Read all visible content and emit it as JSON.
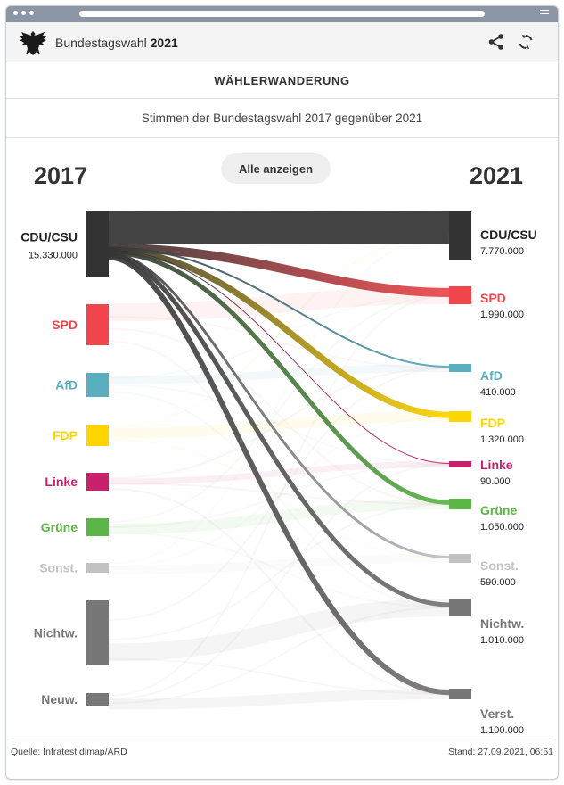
{
  "app": {
    "title_prefix": "Bundestagswahl",
    "title_year": "2021"
  },
  "section_title": "WÄHLERWANDERUNG",
  "subtitle": "Stimmen der Bundestagswahl 2017 gegenüber 2021",
  "button_label": "Alle anzeigen",
  "icons": [
    "eagle-logo-icon",
    "share-icon",
    "refresh-icon"
  ],
  "footer": {
    "source": "Quelle: Infratest dimap/ARD",
    "stand": "Stand: 27.09.2021, 06:51"
  },
  "chart_data": {
    "type": "sankey",
    "left_year": "2017",
    "right_year": "2021",
    "left_nodes": [
      {
        "id": "cdu",
        "label": "CDU/CSU",
        "value_label": "15.330.000",
        "color": "#333333"
      },
      {
        "id": "spd",
        "label": "SPD",
        "value_label": "",
        "color": "#f0454a"
      },
      {
        "id": "afd",
        "label": "AfD",
        "value_label": "",
        "color": "#59afc0"
      },
      {
        "id": "fdp",
        "label": "FDP",
        "value_label": "",
        "color": "#ffd500"
      },
      {
        "id": "linke",
        "label": "Linke",
        "value_label": "",
        "color": "#c8216b"
      },
      {
        "id": "gruene",
        "label": "Grüne",
        "value_label": "",
        "color": "#5bb647"
      },
      {
        "id": "sonst",
        "label": "Sonst.",
        "value_label": "",
        "color": "#c2c2c2"
      },
      {
        "id": "nichtw",
        "label": "Nichtw.",
        "value_label": "",
        "color": "#777777"
      },
      {
        "id": "neuw",
        "label": "Neuw.",
        "value_label": "",
        "color": "#777777"
      }
    ],
    "right_nodes": [
      {
        "id": "cdu",
        "label": "CDU/CSU",
        "value_label": "7.770.000",
        "color": "#333333"
      },
      {
        "id": "spd",
        "label": "SPD",
        "value_label": "1.990.000",
        "color": "#f0454a"
      },
      {
        "id": "afd",
        "label": "AfD",
        "value_label": "410.000",
        "color": "#59afc0"
      },
      {
        "id": "fdp",
        "label": "FDP",
        "value_label": "1.320.000",
        "color": "#ffd500"
      },
      {
        "id": "linke",
        "label": "Linke",
        "value_label": "90.000",
        "color": "#c8216b"
      },
      {
        "id": "gruene",
        "label": "Grüne",
        "value_label": "1.050.000",
        "color": "#5bb647"
      },
      {
        "id": "sonst",
        "label": "Sonst.",
        "value_label": "590.000",
        "color": "#c2c2c2"
      },
      {
        "id": "nichtw",
        "label": "Nichtw.",
        "value_label": "1.010.000",
        "color": "#777777"
      },
      {
        "id": "verst",
        "label": "Verst.",
        "value_label": "1.100.000",
        "color": "#777777"
      }
    ],
    "flows": [
      {
        "from": "cdu",
        "to": "cdu",
        "value": 7770000
      },
      {
        "from": "cdu",
        "to": "spd",
        "value": 1990000
      },
      {
        "from": "cdu",
        "to": "afd",
        "value": 410000
      },
      {
        "from": "cdu",
        "to": "fdp",
        "value": 1320000
      },
      {
        "from": "cdu",
        "to": "linke",
        "value": 90000
      },
      {
        "from": "cdu",
        "to": "gruene",
        "value": 1050000
      },
      {
        "from": "cdu",
        "to": "sonst",
        "value": 590000
      },
      {
        "from": "cdu",
        "to": "nichtw",
        "value": 1010000
      },
      {
        "from": "cdu",
        "to": "verst",
        "value": 1100000
      }
    ],
    "highlighted_source": "cdu"
  }
}
